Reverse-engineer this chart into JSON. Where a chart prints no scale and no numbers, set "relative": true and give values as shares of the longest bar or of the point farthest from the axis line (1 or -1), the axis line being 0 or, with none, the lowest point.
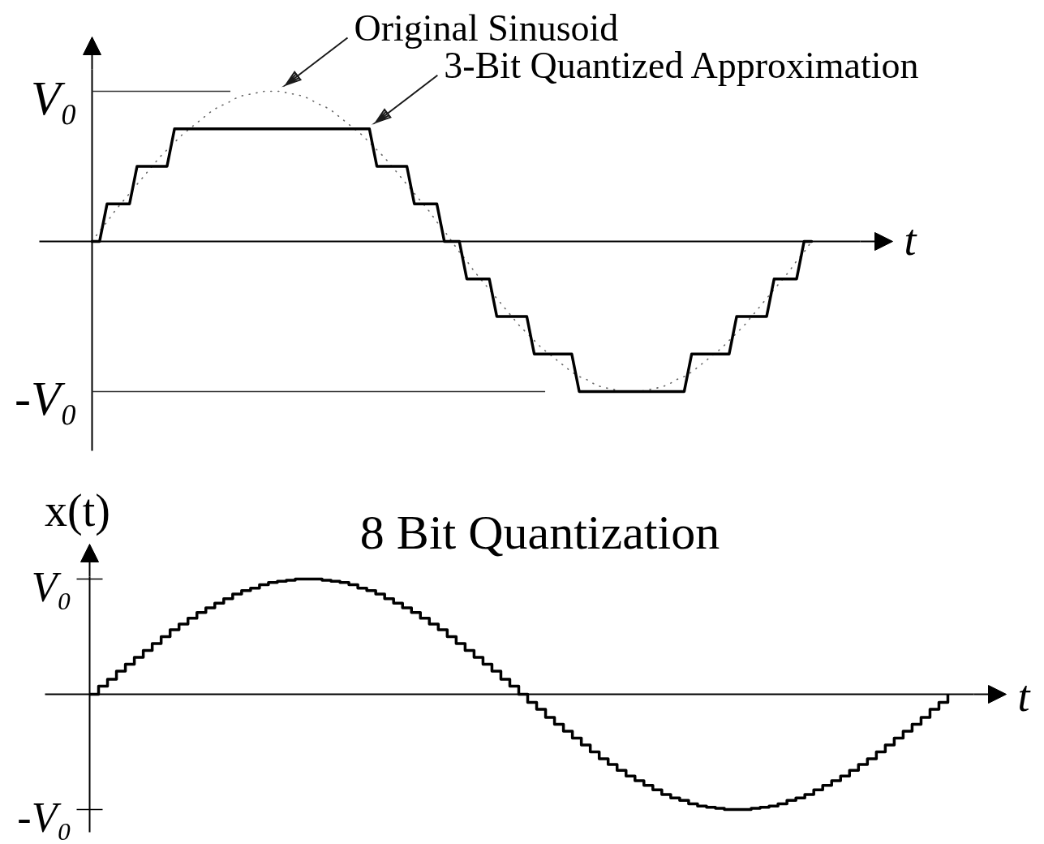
{
  "chart_data": [
    {
      "type": "line",
      "xlabel": "t",
      "relative": true,
      "categories": [
        null,
        null,
        null,
        null,
        null,
        null,
        null,
        null,
        null,
        null,
        null,
        null,
        null,
        null,
        null,
        null,
        null,
        null,
        null,
        null,
        null,
        null,
        null,
        null,
        null,
        null,
        null,
        null,
        null,
        null,
        null,
        null,
        null,
        null,
        null,
        null,
        null,
        null,
        null,
        null,
        null,
        null,
        null,
        null,
        null,
        null,
        null,
        null,
        null,
        null,
        null,
        null,
        null,
        null,
        null,
        null,
        null,
        null,
        null,
        null,
        null,
        null,
        null,
        null,
        null,
        null,
        null,
        null,
        null,
        null,
        null,
        null,
        null,
        null,
        null,
        null,
        null,
        null,
        null,
        null,
        null,
        null,
        null,
        null,
        null,
        null,
        null,
        null,
        null,
        null,
        null,
        null,
        null,
        null,
        null,
        null,
        null
      ],
      "series": [
        {
          "name": "Original Sinusoid",
          "color": "#666666",
          "line_style": "dotted",
          "values": [
            0,
            0.07,
            0.13,
            0.2,
            0.26,
            0.32,
            0.38,
            0.44,
            0.5,
            0.56,
            0.61,
            0.66,
            0.71,
            0.75,
            0.79,
            0.83,
            0.87,
            0.9,
            0.92,
            0.95,
            0.97,
            0.98,
            0.99,
            1,
            1,
            1,
            0.99,
            0.98,
            0.97,
            0.95,
            0.92,
            0.9,
            0.87,
            0.83,
            0.79,
            0.75,
            0.71,
            0.66,
            0.61,
            0.56,
            0.5,
            0.44,
            0.38,
            0.32,
            0.26,
            0.2,
            0.13,
            0.07,
            0,
            -0.07,
            -0.13,
            -0.2,
            -0.26,
            -0.32,
            -0.38,
            -0.44,
            -0.5,
            -0.56,
            -0.61,
            -0.66,
            -0.71,
            -0.75,
            -0.79,
            -0.83,
            -0.87,
            -0.9,
            -0.92,
            -0.95,
            -0.97,
            -0.98,
            -0.99,
            -1,
            -1,
            -1,
            -0.99,
            -0.98,
            -0.97,
            -0.95,
            -0.92,
            -0.9,
            -0.87,
            -0.83,
            -0.79,
            -0.75,
            -0.71,
            -0.66,
            -0.61,
            -0.56,
            -0.5,
            -0.44,
            -0.38,
            -0.32,
            -0.26,
            -0.2,
            -0.13,
            -0.07,
            0
          ]
        },
        {
          "name": "3-Bit Quantized Approximation",
          "color": "#000000",
          "line_style": "solid",
          "values": [
            0,
            0,
            0.25,
            0.25,
            0.25,
            0.25,
            0.5,
            0.5,
            0.5,
            0.5,
            0.5,
            0.75,
            0.75,
            0.75,
            0.75,
            0.75,
            0.75,
            0.75,
            0.75,
            0.75,
            0.75,
            0.75,
            0.75,
            0.75,
            0.75,
            0.75,
            0.75,
            0.75,
            0.75,
            0.75,
            0.75,
            0.75,
            0.75,
            0.75,
            0.75,
            0.75,
            0.75,
            0.75,
            0.5,
            0.5,
            0.5,
            0.5,
            0.5,
            0.25,
            0.25,
            0.25,
            0.25,
            0,
            0,
            0,
            -0.25,
            -0.25,
            -0.25,
            -0.25,
            -0.5,
            -0.5,
            -0.5,
            -0.5,
            -0.5,
            -0.75,
            -0.75,
            -0.75,
            -0.75,
            -0.75,
            -0.75,
            -1,
            -1,
            -1,
            -1,
            -1,
            -1,
            -1,
            -1,
            -1,
            -1,
            -1,
            -1,
            -1,
            -1,
            -1,
            -0.75,
            -0.75,
            -0.75,
            -0.75,
            -0.75,
            -0.75,
            -0.5,
            -0.5,
            -0.5,
            -0.5,
            -0.5,
            -0.25,
            -0.25,
            -0.25,
            -0.25,
            0,
            0
          ]
        }
      ],
      "ref_lines": [
        {
          "axis": "y",
          "value": 1,
          "label": "V₀",
          "color": "#333333"
        },
        {
          "axis": "y",
          "value": -1,
          "label": "-V₀",
          "color": "#333333"
        }
      ]
    },
    {
      "type": "step",
      "title": "8 Bit Quantization",
      "xlabel": "t",
      "ylabel": "x(t)",
      "relative": true,
      "categories": [
        null,
        null,
        null,
        null,
        null,
        null,
        null,
        null,
        null,
        null,
        null,
        null,
        null,
        null,
        null,
        null,
        null,
        null,
        null,
        null,
        null,
        null,
        null,
        null,
        null,
        null,
        null,
        null,
        null,
        null,
        null,
        null,
        null,
        null,
        null,
        null,
        null,
        null,
        null,
        null,
        null,
        null,
        null,
        null,
        null,
        null,
        null,
        null,
        null,
        null,
        null,
        null,
        null,
        null,
        null,
        null,
        null,
        null,
        null,
        null,
        null,
        null,
        null,
        null,
        null,
        null,
        null,
        null,
        null,
        null,
        null,
        null,
        null,
        null,
        null,
        null,
        null,
        null,
        null,
        null,
        null,
        null,
        null,
        null,
        null,
        null,
        null,
        null,
        null,
        null,
        null,
        null,
        null,
        null,
        null,
        null,
        null
      ],
      "color": "#000000",
      "values": [
        0,
        0.07,
        0.13,
        0.2,
        0.26,
        0.32,
        0.38,
        0.44,
        0.5,
        0.56,
        0.61,
        0.66,
        0.71,
        0.75,
        0.79,
        0.83,
        0.87,
        0.9,
        0.92,
        0.95,
        0.97,
        0.98,
        0.99,
        1,
        1,
        1,
        0.99,
        0.98,
        0.97,
        0.95,
        0.92,
        0.9,
        0.87,
        0.83,
        0.79,
        0.75,
        0.71,
        0.66,
        0.61,
        0.56,
        0.5,
        0.44,
        0.38,
        0.32,
        0.26,
        0.2,
        0.13,
        0.07,
        0,
        -0.07,
        -0.13,
        -0.2,
        -0.26,
        -0.32,
        -0.38,
        -0.44,
        -0.5,
        -0.56,
        -0.61,
        -0.66,
        -0.71,
        -0.75,
        -0.79,
        -0.83,
        -0.87,
        -0.9,
        -0.92,
        -0.95,
        -0.97,
        -0.98,
        -0.99,
        -1,
        -1,
        -1,
        -0.99,
        -0.98,
        -0.97,
        -0.95,
        -0.92,
        -0.9,
        -0.87,
        -0.83,
        -0.79,
        -0.75,
        -0.71,
        -0.66,
        -0.61,
        -0.56,
        -0.5,
        -0.44,
        -0.38,
        -0.32,
        -0.26,
        -0.2,
        -0.13,
        -0.07,
        0
      ],
      "ref_lines": [
        {
          "axis": "y",
          "value": 1,
          "label": "V₀",
          "color": "#000000"
        },
        {
          "axis": "y",
          "value": -1,
          "label": "-V₀",
          "color": "#000000"
        }
      ]
    }
  ]
}
